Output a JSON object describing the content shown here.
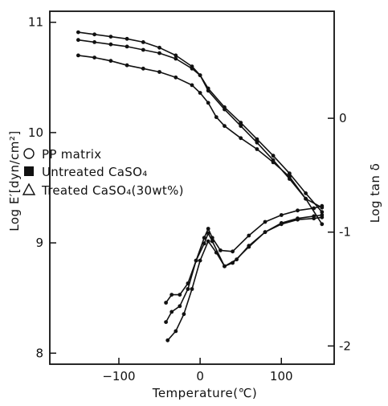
{
  "chart_data": {
    "type": "line",
    "xlabel": "Temperature(℃)",
    "ylabel_left": "Log E′[dyn/cm²]",
    "ylabel_right": "Log tan δ",
    "xlim": [
      -185,
      165
    ],
    "ylim_left": [
      7.9,
      11.1
    ],
    "ylim_right": [
      -2.16,
      0.94
    ],
    "x_ticks": [
      -100,
      0,
      100
    ],
    "x_tick_labels": [
      "−100",
      "0",
      "100"
    ],
    "y_left_ticks": [
      8,
      9,
      10,
      11
    ],
    "y_left_tick_labels": [
      "8",
      "9",
      "10",
      "11"
    ],
    "y_right_ticks": [
      -2,
      -1,
      0
    ],
    "y_right_tick_labels": [
      "-2",
      "-1",
      "0"
    ],
    "grid": false,
    "legend": {
      "position": "middle-left",
      "entries": [
        {
          "marker": "circle-open",
          "label": "PP matrix"
        },
        {
          "marker": "square-filled",
          "label": "Untreated CaSO₄"
        },
        {
          "marker": "triangle-open",
          "label": "Treated CaSO₄(30wt%)"
        }
      ]
    },
    "series_modulus": [
      {
        "axis": "left",
        "x": [
          -150,
          -130,
          -110,
          -90,
          -70,
          -50,
          -30,
          -10,
          0,
          10,
          30,
          50,
          70,
          90,
          110,
          130,
          150
        ],
        "y": [
          10.91,
          10.89,
          10.87,
          10.85,
          10.82,
          10.77,
          10.7,
          10.6,
          10.52,
          10.4,
          10.23,
          10.09,
          9.94,
          9.79,
          9.63,
          9.45,
          9.28
        ]
      },
      {
        "axis": "left",
        "x": [
          -150,
          -130,
          -110,
          -90,
          -70,
          -50,
          -30,
          -10,
          0,
          10,
          30,
          50,
          70,
          90,
          110,
          130,
          150
        ],
        "y": [
          10.84,
          10.82,
          10.8,
          10.78,
          10.75,
          10.72,
          10.67,
          10.58,
          10.52,
          10.38,
          10.21,
          10.06,
          9.91,
          9.75,
          9.58,
          9.4,
          9.32
        ]
      },
      {
        "axis": "left",
        "x": [
          -150,
          -130,
          -110,
          -90,
          -70,
          -50,
          -30,
          -10,
          0,
          10,
          20,
          30,
          50,
          70,
          90,
          110,
          130,
          150
        ],
        "y": [
          10.7,
          10.68,
          10.65,
          10.61,
          10.58,
          10.55,
          10.5,
          10.43,
          10.36,
          10.27,
          10.14,
          10.06,
          9.95,
          9.85,
          9.73,
          9.6,
          9.4,
          9.17
        ]
      }
    ],
    "series_tandelta": [
      {
        "axis": "right",
        "x": [
          -42,
          -35,
          -25,
          -15,
          -5,
          5,
          10,
          15,
          25,
          40,
          60,
          80,
          100,
          120,
          140,
          150
        ],
        "y": [
          -1.62,
          -1.55,
          -1.55,
          -1.45,
          -1.25,
          -1.05,
          -0.97,
          -1.05,
          -1.16,
          -1.17,
          -1.03,
          -0.91,
          -0.85,
          -0.81,
          -0.79,
          -0.77
        ]
      },
      {
        "axis": "right",
        "x": [
          -42,
          -35,
          -25,
          -15,
          -5,
          5,
          10,
          15,
          30,
          45,
          60,
          80,
          100,
          120,
          140,
          150
        ],
        "y": [
          -1.79,
          -1.7,
          -1.65,
          -1.5,
          -1.25,
          -1.1,
          -1.01,
          -1.08,
          -1.3,
          -1.24,
          -1.12,
          -1.0,
          -0.92,
          -0.88,
          -0.86,
          -0.85
        ]
      },
      {
        "axis": "right",
        "x": [
          -40,
          -30,
          -20,
          -10,
          0,
          10,
          20,
          30,
          40,
          60,
          80,
          100,
          120,
          140,
          150
        ],
        "y": [
          -1.95,
          -1.87,
          -1.72,
          -1.5,
          -1.25,
          -1.08,
          -1.18,
          -1.3,
          -1.27,
          -1.13,
          -1.0,
          -0.93,
          -0.89,
          -0.88,
          -0.87
        ]
      }
    ]
  }
}
